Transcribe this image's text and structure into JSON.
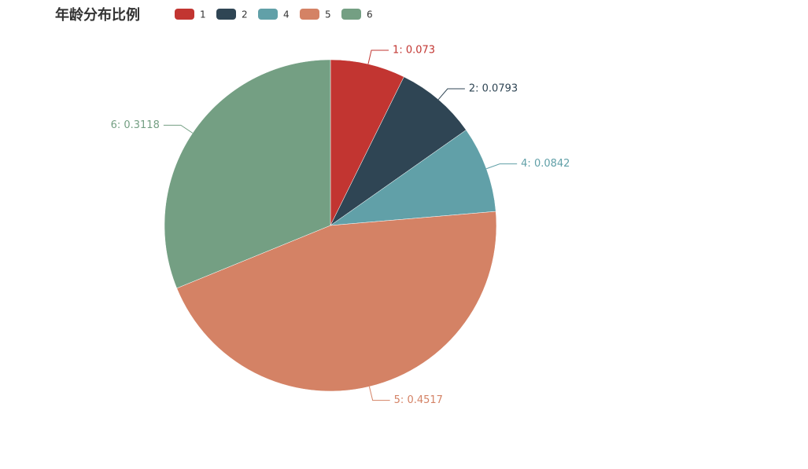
{
  "chart_data": {
    "type": "pie",
    "title": "年龄分布比例",
    "categories": [
      "1",
      "2",
      "4",
      "5",
      "6"
    ],
    "values": [
      0.073,
      0.0793,
      0.0842,
      0.4517,
      0.3118
    ],
    "value_labels": [
      "1: 0.073",
      "2: 0.0793",
      "4: 0.0842",
      "5: 0.4517",
      "6: 0.3118"
    ],
    "colors": [
      "#c23531",
      "#2f4554",
      "#61a0a8",
      "#d48265",
      "#749f83"
    ]
  }
}
